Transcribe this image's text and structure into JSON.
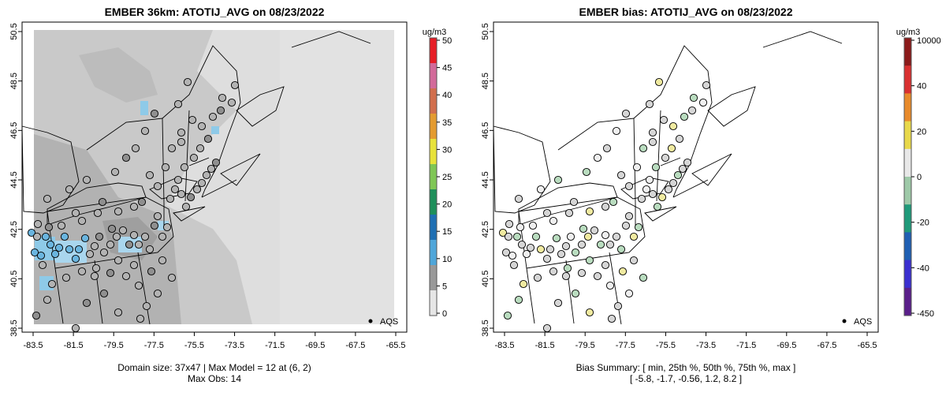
{
  "left_panel": {
    "title": "EMBER 36km: ATOTIJ_AVG on 08/23/2022",
    "footer_line1": "Domain size: 37x47 | Max Model = 12 at (6, 2)",
    "footer_line2": "Max Obs: 14",
    "legend_label": "AQS",
    "colorbar": {
      "units": "ug/m3",
      "tick_labels": [
        "0",
        "5",
        "10",
        "15",
        "20",
        "25",
        "30",
        "35",
        "40",
        "45",
        "50"
      ],
      "colors": [
        "#e6e6e6",
        "#999999",
        "#4fa6d9",
        "#1f6fb3",
        "#1e8f5a",
        "#7fc655",
        "#e8e23b",
        "#e39b30",
        "#d16e4d",
        "#d26a9a",
        "#e61e26"
      ]
    }
  },
  "right_panel": {
    "title": "EMBER bias: ATOTIJ_AVG on 08/23/2022",
    "footer_line1": "Bias Summary: [ min, 25th %, 50th %, 75th %, max ]",
    "footer_line2": "[ -5.8,   -1.7,   -0.56,   1.2,   8.2 ]",
    "legend_label": "AQS",
    "colorbar": {
      "units": "ug/m3",
      "tick_labels": [
        "10000",
        "40",
        "20",
        "0",
        "-20",
        "-40",
        "-450"
      ],
      "colors": [
        "#8b1a1a",
        "#d93030",
        "#e88a2a",
        "#e8d84a",
        "#e8e8e8",
        "#9ec9a8",
        "#1f9a7a",
        "#1f5fb3",
        "#3a2fd0",
        "#5a1f8a"
      ]
    }
  },
  "axes": {
    "x_ticks": [
      "-83.5",
      "-81.5",
      "-79.5",
      "-77.5",
      "-75.5",
      "-73.5",
      "-71.5",
      "-69.5",
      "-67.5",
      "-65.5"
    ],
    "y_ticks": [
      "38.5",
      "40.5",
      "42.5",
      "44.5",
      "46.5",
      "48.5",
      "50.5"
    ]
  },
  "colors": {
    "no_data": "#e3e3e3",
    "bg_light": "#dedede",
    "mid_gray": "#c8c8c8",
    "dark_gray": "#a9a9a9",
    "blue": "#6ab5df",
    "obs_gray": "#b3b3b3",
    "obs_dark": "#8f8f8f",
    "obs_green": "#b9dcbf",
    "obs_yellow": "#f0eaa0",
    "obs_white": "#efefef"
  }
}
